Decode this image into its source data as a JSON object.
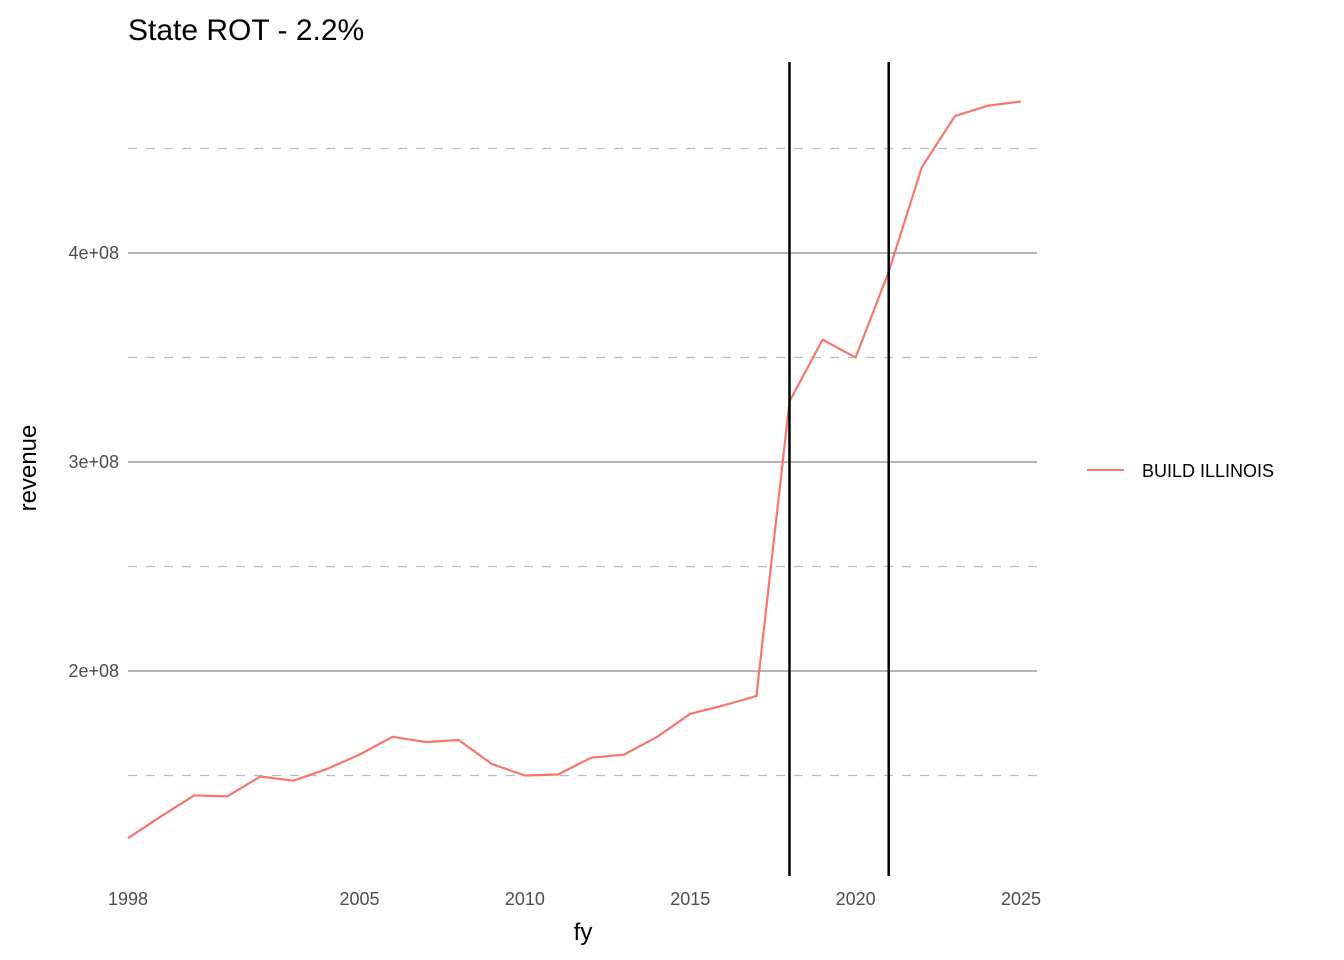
{
  "chart_data": {
    "type": "line",
    "title": "State ROT - 2.2%",
    "xlabel": "fy",
    "ylabel": "revenue",
    "xlim": [
      1998,
      2025
    ],
    "ylim": [
      100000000,
      480000000
    ],
    "x_ticks": [
      1998,
      2005,
      2010,
      2015,
      2020,
      2025
    ],
    "y_ticks": [
      200000000,
      300000000,
      400000000
    ],
    "y_tick_labels": [
      "2e+08",
      "3e+08",
      "4e+08"
    ],
    "y_minor_ticks": [
      150000000,
      250000000,
      350000000,
      450000000
    ],
    "vlines": [
      2018,
      2021
    ],
    "grid": true,
    "legend_position": "right",
    "series": [
      {
        "name": "BUILD ILLINOIS",
        "color": "#f8766d",
        "x": [
          1998,
          1999,
          2000,
          2001,
          2002,
          2003,
          2004,
          2005,
          2006,
          2007,
          2008,
          2009,
          2010,
          2011,
          2012,
          2013,
          2014,
          2015,
          2016,
          2017,
          2018,
          2019,
          2020,
          2021,
          2022,
          2023,
          2024,
          2025
        ],
        "values": [
          120000000,
          130500000,
          140500000,
          140000000,
          149500000,
          147500000,
          153000000,
          160000000,
          168500000,
          166000000,
          167000000,
          155500000,
          150000000,
          150500000,
          158500000,
          160000000,
          168500000,
          179500000,
          183500000,
          188000000,
          329000000,
          358500000,
          350000000,
          391000000,
          441000000,
          465500000,
          470500000,
          472500000
        ]
      }
    ]
  }
}
